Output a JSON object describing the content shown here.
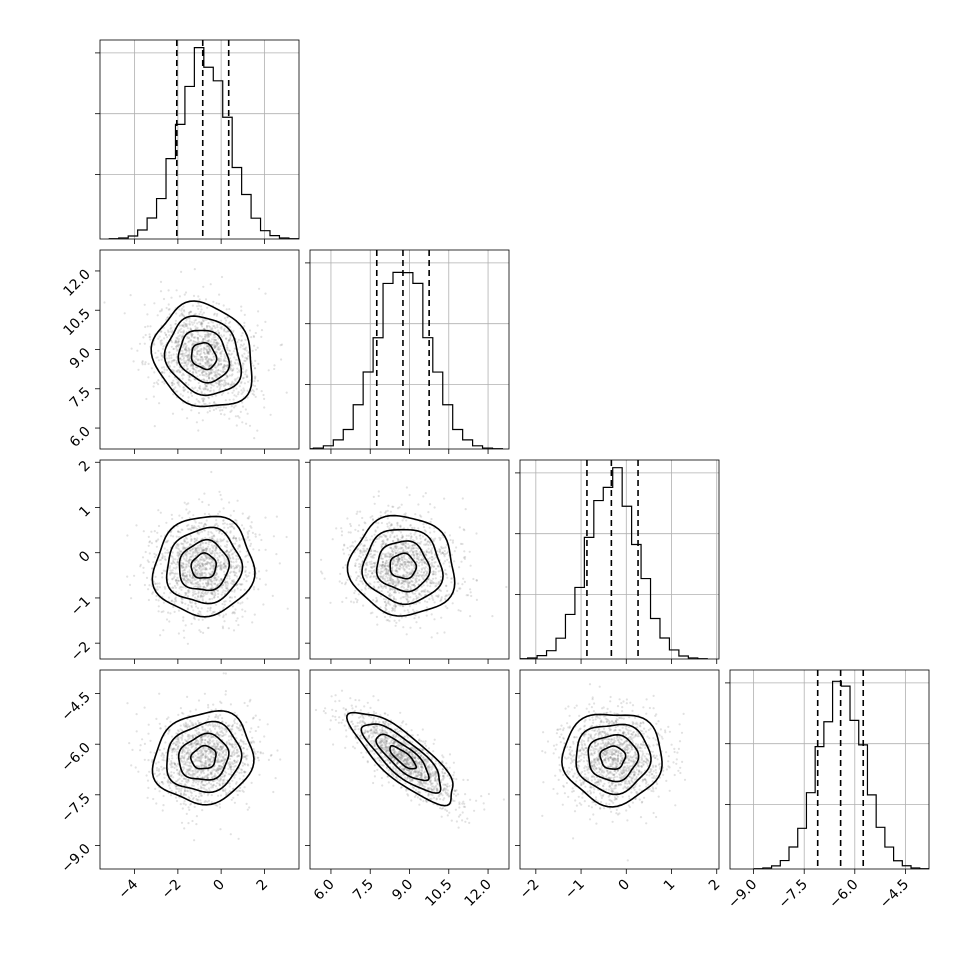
{
  "chart_data": {
    "type": "corner",
    "title": "",
    "parameters": [
      {
        "range": [
          -5.6,
          3.6
        ],
        "ticks": [
          -4,
          -2,
          0,
          2
        ],
        "tick_labels": [
          "−4",
          "−2",
          "0",
          "2"
        ],
        "mean": -0.8,
        "sd": 1.15,
        "quantiles": [
          -2.05,
          -0.85,
          0.35
        ],
        "hist_peak": 0.3
      },
      {
        "range": [
          5.2,
          12.8
        ],
        "ticks": [
          6.0,
          7.5,
          9.0,
          10.5,
          12.0
        ],
        "tick_labels": [
          "6.0",
          "7.5",
          "9.0",
          "10.5",
          "12.0"
        ],
        "mean": 8.75,
        "sd": 1.0,
        "quantiles": [
          7.75,
          8.75,
          9.75
        ],
        "hist_peak": 0.34
      },
      {
        "range": [
          -2.35,
          2.05
        ],
        "ticks": [
          -2,
          -1,
          0,
          1,
          2
        ],
        "tick_labels": [
          "−2",
          "−1",
          "0",
          "1",
          "2"
        ],
        "mean": -0.3,
        "sd": 0.55,
        "quantiles": [
          -0.87,
          -0.33,
          0.26
        ],
        "hist_peak": 0.7
      },
      {
        "range": [
          -9.7,
          -3.8
        ],
        "ticks": [
          -9.0,
          -7.5,
          -6.0,
          -4.5
        ],
        "tick_labels": [
          "−9.0",
          "−7.5",
          "−6.0",
          "−4.5"
        ],
        "mean": -6.4,
        "sd": 0.68,
        "quantiles": [
          -7.1,
          -6.42,
          -5.75
        ],
        "hist_peak": 0.52
      }
    ],
    "correlations": [
      [
        1,
        -0.15,
        0.05,
        0.1
      ],
      [
        -0.15,
        1,
        -0.05,
        -0.8
      ],
      [
        0.05,
        -0.05,
        1,
        0.0
      ],
      [
        0.1,
        -0.8,
        0.0,
        1
      ]
    ],
    "grid": true,
    "xlabel": "",
    "ylabel": ""
  }
}
